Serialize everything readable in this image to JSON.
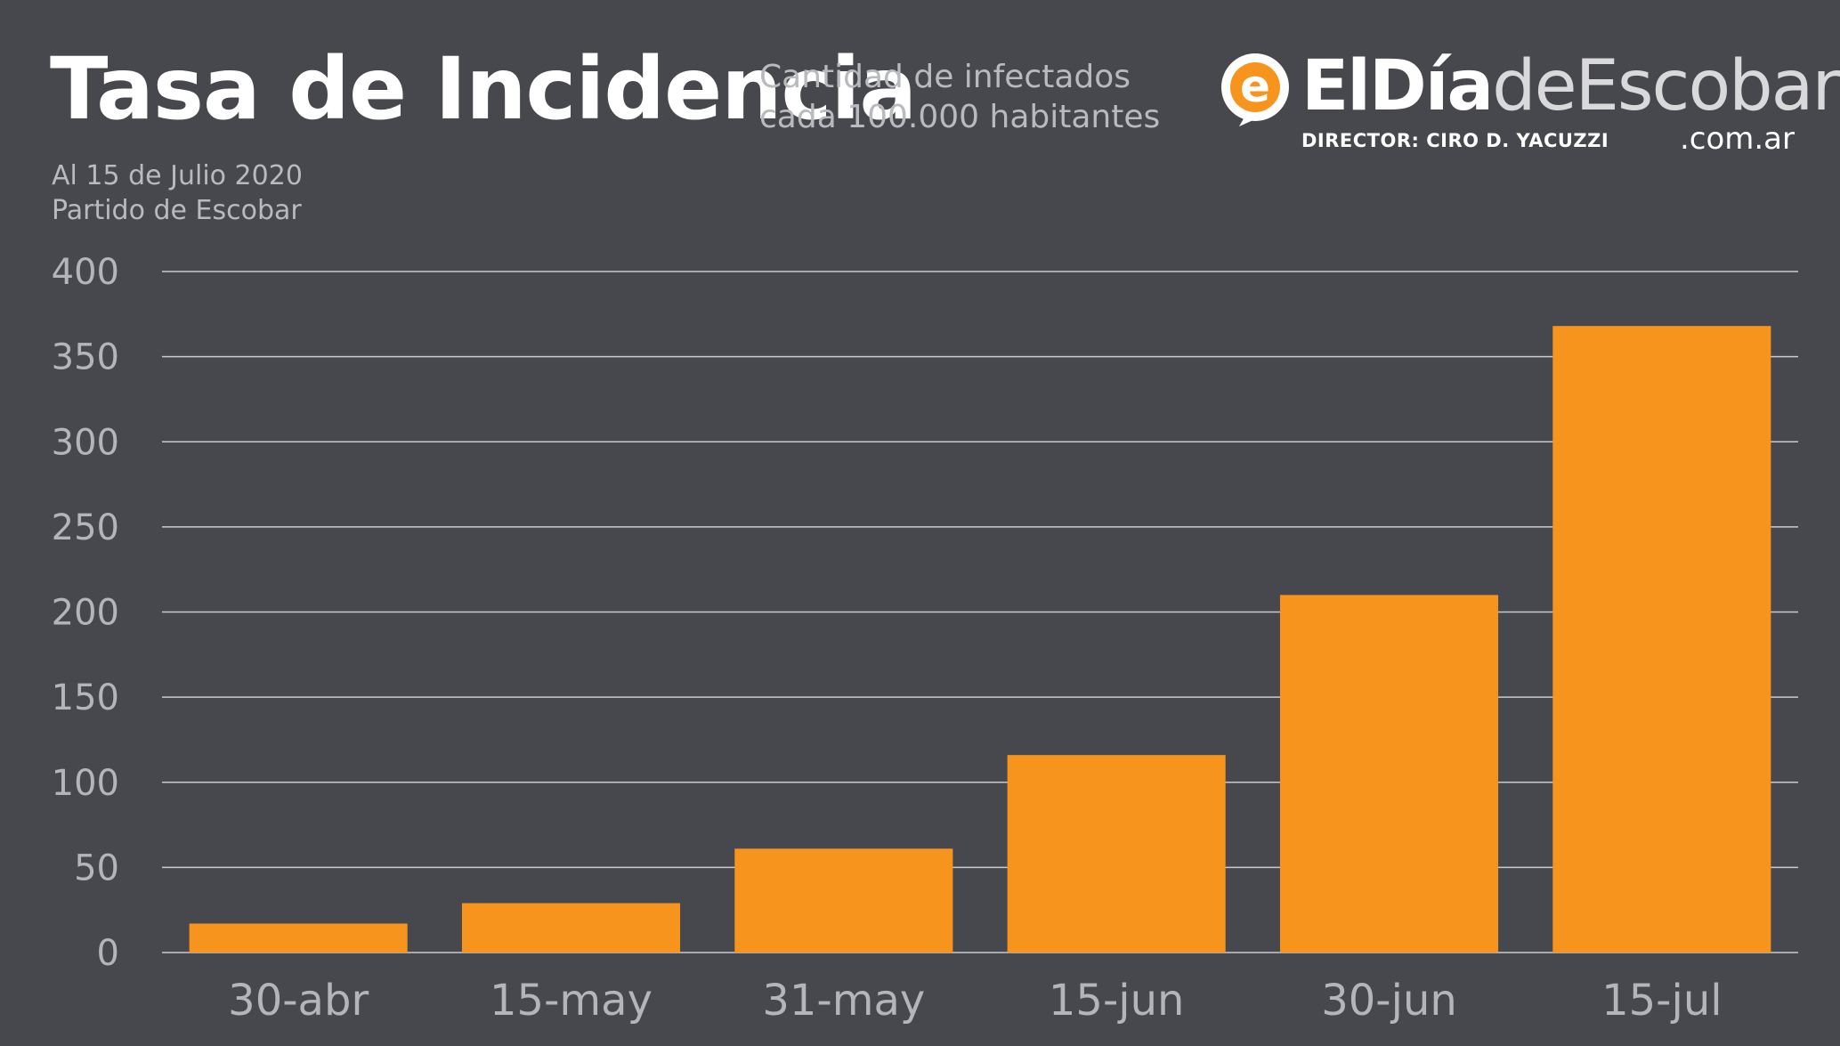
{
  "header": {
    "title": "Tasa de Incidencia",
    "subtitle_line1": "Cantidad de infectados",
    "subtitle_line2": "cada 100.000 habitantes",
    "date": "Al 15 de Julio 2020",
    "place": "Partido de Escobar"
  },
  "brand": {
    "mark_letter": "e",
    "name_bold": "ElDía",
    "name_rest": "deEscobar",
    "domain": ".com.ar",
    "director": "DIRECTOR: CIRO D. YACUZZI",
    "accent": "#f7941d"
  },
  "colors": {
    "background": "#47484e",
    "bar": "#f7941d",
    "grid": "#c9cacd",
    "text_muted": "#b4b5b9"
  },
  "chart_data": {
    "type": "bar",
    "title": "Tasa de Incidencia",
    "xlabel": "",
    "ylabel": "",
    "categories": [
      "30-abr",
      "15-may",
      "31-may",
      "15-jun",
      "30-jun",
      "15-jul"
    ],
    "values": [
      17,
      29,
      61,
      116,
      210,
      368
    ],
    "ylim": [
      0,
      400
    ],
    "yticks": [
      0,
      50,
      100,
      150,
      200,
      250,
      300,
      350,
      400
    ],
    "grid": true,
    "legend": "none"
  }
}
